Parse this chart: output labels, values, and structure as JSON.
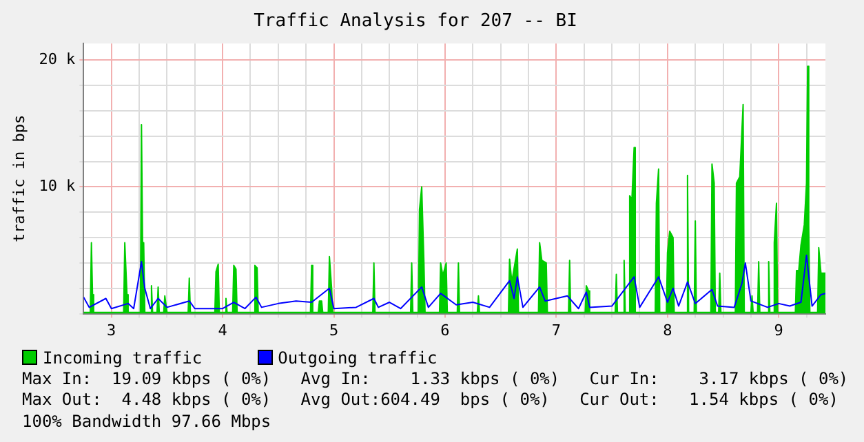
{
  "chart_data": {
    "type": "area",
    "title": "Traffic Analysis for 207 -- BI",
    "ylabel": "traffic in bps",
    "xlim": [
      2.75,
      9.42
    ],
    "xticks": [
      {
        "value": 3,
        "label": "3"
      },
      {
        "value": 3.25,
        "label": null
      },
      {
        "value": 3.5,
        "label": null
      },
      {
        "value": 3.75,
        "label": null
      },
      {
        "value": 4,
        "label": "4"
      },
      {
        "value": 4.25,
        "label": null
      },
      {
        "value": 4.5,
        "label": null
      },
      {
        "value": 4.75,
        "label": null
      },
      {
        "value": 5,
        "label": "5"
      },
      {
        "value": 5.25,
        "label": null
      },
      {
        "value": 5.5,
        "label": null
      },
      {
        "value": 5.75,
        "label": null
      },
      {
        "value": 6,
        "label": "6"
      },
      {
        "value": 6.25,
        "label": null
      },
      {
        "value": 6.5,
        "label": null
      },
      {
        "value": 6.75,
        "label": null
      },
      {
        "value": 7,
        "label": "7"
      },
      {
        "value": 7.25,
        "label": null
      },
      {
        "value": 7.5,
        "label": null
      },
      {
        "value": 7.75,
        "label": null
      },
      {
        "value": 8,
        "label": "8"
      },
      {
        "value": 8.25,
        "label": null
      },
      {
        "value": 8.5,
        "label": null
      },
      {
        "value": 8.75,
        "label": null
      },
      {
        "value": 9,
        "label": "9"
      },
      {
        "value": 9.25,
        "label": null
      }
    ],
    "ylim": [
      0,
      21300
    ],
    "yticks": [
      {
        "value": 0,
        "label": null
      },
      {
        "value": 2000,
        "label": null
      },
      {
        "value": 4000,
        "label": null
      },
      {
        "value": 6000,
        "label": null
      },
      {
        "value": 8000,
        "label": null
      },
      {
        "value": 10000,
        "label": "10 k"
      },
      {
        "value": 12000,
        "label": null
      },
      {
        "value": 14000,
        "label": null
      },
      {
        "value": 16000,
        "label": null
      },
      {
        "value": 18000,
        "label": null
      },
      {
        "value": 20000,
        "label": "20 k"
      }
    ],
    "grid": true,
    "legend": "bottom",
    "marker": "none",
    "line_style": "solid",
    "series": [
      {
        "name": "Incoming traffic",
        "color": "#00cc00",
        "x": [
          2.75,
          2.81,
          2.82,
          2.83,
          2.84,
          3.11,
          3.12,
          3.14,
          3.15,
          3.26,
          3.27,
          3.28,
          3.29,
          3.3,
          3.35,
          3.36,
          3.37,
          3.41,
          3.42,
          3.43,
          3.47,
          3.48,
          3.5,
          3.69,
          3.7,
          3.71,
          3.93,
          3.94,
          3.96,
          3.97,
          4.02,
          4.03,
          4.04,
          4.09,
          4.1,
          4.12,
          4.13,
          4.28,
          4.29,
          4.31,
          4.32,
          4.79,
          4.8,
          4.81,
          4.86,
          4.87,
          4.89,
          4.9,
          4.95,
          4.96,
          4.98,
          4.99,
          5.35,
          5.36,
          5.37,
          5.69,
          5.7,
          5.71,
          5.76,
          5.77,
          5.79,
          5.81,
          5.82,
          5.95,
          5.96,
          5.98,
          6.01,
          6.02,
          6.11,
          6.12,
          6.13,
          6.29,
          6.3,
          6.31,
          6.57,
          6.58,
          6.6,
          6.65,
          6.66,
          6.84,
          6.85,
          6.87,
          6.91,
          6.92,
          7.11,
          7.12,
          7.13,
          7.26,
          7.27,
          7.29,
          7.3,
          7.53,
          7.54,
          7.55,
          7.6,
          7.61,
          7.62,
          7.65,
          7.66,
          7.68,
          7.7,
          7.71,
          7.89,
          7.9,
          7.92,
          7.93,
          7.99,
          8,
          8.02,
          8.05,
          8.06,
          8.17,
          8.18,
          8.19,
          8.24,
          8.25,
          8.26,
          8.39,
          8.4,
          8.42,
          8.43,
          8.46,
          8.47,
          8.48,
          8.61,
          8.62,
          8.65,
          8.68,
          8.69,
          8.75,
          8.76,
          8.77,
          8.81,
          8.82,
          8.83,
          8.9,
          8.91,
          8.92,
          8.95,
          8.96,
          8.98,
          8.99,
          9.15,
          9.16,
          9.18,
          9.2,
          9.23,
          9.25,
          9.26,
          9.27,
          9.28,
          9.35,
          9.36,
          9.38,
          9.4,
          9.42
        ],
        "values": [
          100,
          100,
          5600,
          1500,
          100,
          100,
          5600,
          1500,
          100,
          100,
          14900,
          5600,
          5600,
          100,
          100,
          2200,
          100,
          100,
          2100,
          100,
          100,
          1400,
          100,
          100,
          2800,
          100,
          100,
          3300,
          3900,
          100,
          100,
          1200,
          100,
          100,
          3800,
          3500,
          100,
          100,
          3800,
          3600,
          100,
          100,
          3800,
          100,
          100,
          1000,
          1000,
          100,
          100,
          4500,
          2000,
          100,
          100,
          4000,
          100,
          100,
          4000,
          100,
          100,
          8200,
          10000,
          4000,
          100,
          100,
          4000,
          3000,
          4000,
          100,
          100,
          4000,
          100,
          100,
          1400,
          100,
          100,
          4300,
          2500,
          5100,
          100,
          100,
          5600,
          4200,
          4000,
          100,
          100,
          4200,
          100,
          100,
          2200,
          1800,
          100,
          100,
          3100,
          100,
          100,
          4200,
          100,
          100,
          9300,
          9000,
          13100,
          100,
          100,
          8700,
          11400,
          100,
          100,
          4800,
          6500,
          6000,
          100,
          100,
          10900,
          100,
          100,
          7300,
          100,
          100,
          11800,
          10300,
          100,
          100,
          3200,
          100,
          100,
          10300,
          10800,
          16500,
          100,
          100,
          1400,
          100,
          100,
          4100,
          100,
          100,
          4100,
          100,
          100,
          5600,
          8700,
          100,
          100,
          3400,
          3400,
          5400,
          7000,
          10300,
          19500,
          7000,
          100,
          100,
          5200,
          3200,
          3200,
          3200
        ]
      },
      {
        "name": "Outgoing traffic",
        "type": "line",
        "color": "#0000ff",
        "x": [
          2.75,
          2.8,
          2.95,
          3,
          3.15,
          3.2,
          3.27,
          3.3,
          3.35,
          3.42,
          3.5,
          3.7,
          3.75,
          4,
          4.1,
          4.2,
          4.3,
          4.35,
          4.5,
          4.66,
          4.8,
          4.96,
          5,
          5.2,
          5.36,
          5.4,
          5.5,
          5.6,
          5.79,
          5.85,
          5.96,
          6.1,
          6.25,
          6.4,
          6.58,
          6.62,
          6.65,
          6.7,
          6.85,
          6.9,
          7.1,
          7.2,
          7.27,
          7.3,
          7.5,
          7.7,
          7.75,
          7.92,
          8,
          8.05,
          8.1,
          8.18,
          8.25,
          8.4,
          8.45,
          8.6,
          8.67,
          8.7,
          8.75,
          8.9,
          9,
          9.1,
          9.2,
          9.25,
          9.3,
          9.38,
          9.42
        ],
        "values": [
          1300,
          500,
          1200,
          400,
          800,
          400,
          4100,
          2000,
          400,
          1200,
          500,
          1000,
          400,
          400,
          900,
          400,
          1300,
          500,
          800,
          1000,
          900,
          2000,
          400,
          500,
          1200,
          500,
          900,
          400,
          2100,
          500,
          1600,
          700,
          900,
          500,
          2600,
          1200,
          2900,
          500,
          2100,
          1000,
          1400,
          400,
          1700,
          500,
          600,
          2900,
          500,
          2900,
          900,
          2000,
          600,
          2500,
          800,
          1900,
          600,
          500,
          2400,
          4000,
          1000,
          500,
          800,
          600,
          900,
          4600,
          600,
          1500,
          1600
        ]
      }
    ],
    "annotations": [
      "Max In:  19.09 kbps ( 0%)   Avg In:    1.33 kbps ( 0%)   Cur In:    3.17 kbps ( 0%)",
      "Max Out:  4.48 kbps ( 0%)   Avg Out:604.49  bps ( 0%)   Cur Out:   1.54 kbps ( 0%)",
      "100% Bandwidth 97.66 Mbps"
    ]
  }
}
